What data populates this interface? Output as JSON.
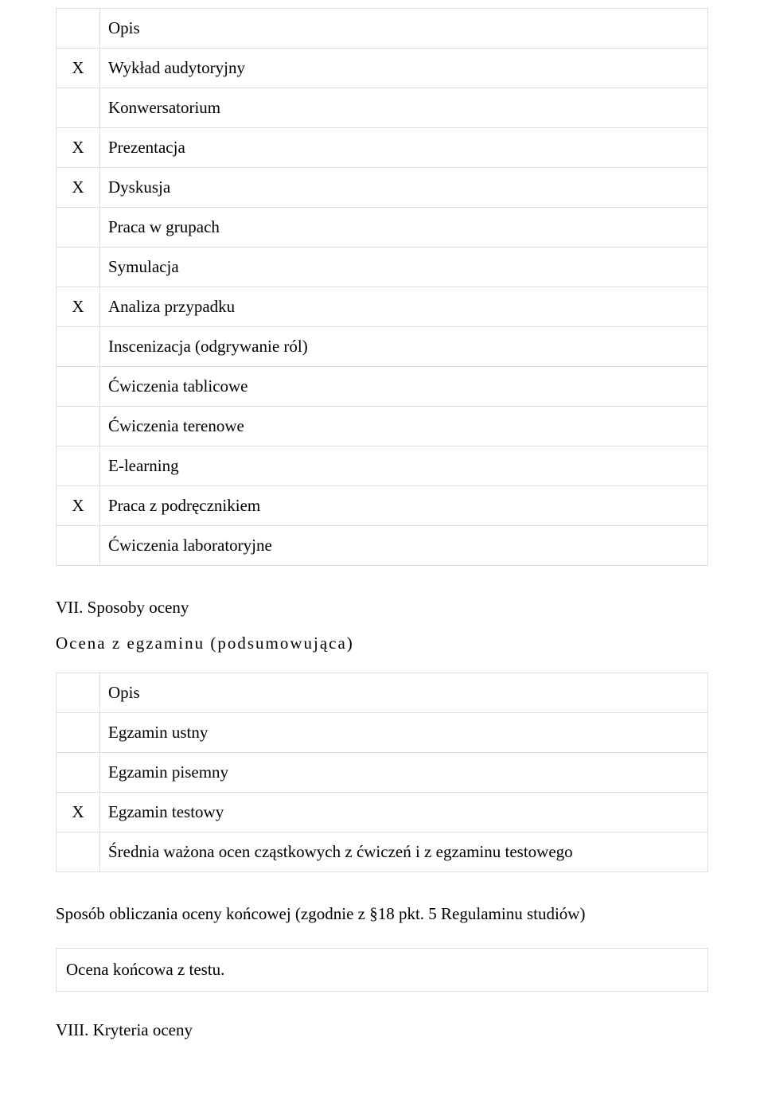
{
  "table1": {
    "rows": [
      {
        "mark": "",
        "label": "Opis"
      },
      {
        "mark": "X",
        "label": "Wykład audytoryjny"
      },
      {
        "mark": "",
        "label": "Konwersatorium"
      },
      {
        "mark": "X",
        "label": "Prezentacja"
      },
      {
        "mark": "X",
        "label": "Dyskusja"
      },
      {
        "mark": "",
        "label": "Praca w grupach"
      },
      {
        "mark": "",
        "label": "Symulacja"
      },
      {
        "mark": "X",
        "label": "Analiza przypadku"
      },
      {
        "mark": "",
        "label": "Inscenizacja (odgrywanie ról)"
      },
      {
        "mark": "",
        "label": "Ćwiczenia tablicowe"
      },
      {
        "mark": "",
        "label": "Ćwiczenia terenowe"
      },
      {
        "mark": "",
        "label": "E-learning"
      },
      {
        "mark": "X",
        "label": "Praca z podręcznikiem"
      },
      {
        "mark": "",
        "label": "Ćwiczenia laboratoryjne"
      }
    ]
  },
  "section7": {
    "heading": "VII. Sposoby oceny",
    "subheading": "Ocena z egzaminu (podsumowująca)"
  },
  "table2": {
    "rows": [
      {
        "mark": "",
        "label": "Opis"
      },
      {
        "mark": "",
        "label": "Egzamin ustny"
      },
      {
        "mark": "",
        "label": "Egzamin pisemny"
      },
      {
        "mark": "X",
        "label": "Egzamin testowy"
      },
      {
        "mark": "",
        "label": "Średnia ważona ocen cząstkowych z ćwiczeń i z egzaminu testowego"
      }
    ]
  },
  "calc_note": "Sposób obliczania oceny końcowej (zgodnie z §18 pkt. 5 Regulaminu studiów)",
  "final_box": "Ocena końcowa z testu.",
  "section8": {
    "heading": "VIII. Kryteria oceny"
  }
}
